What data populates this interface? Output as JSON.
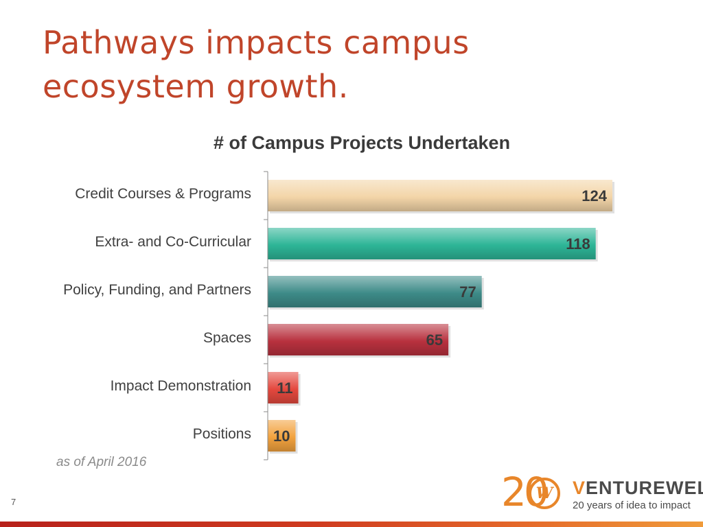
{
  "slide": {
    "title": "Pathways impacts campus ecosystem growth.",
    "page_number": "7",
    "note": "as of April 2016"
  },
  "logo": {
    "mark": "20",
    "name_accent": "V",
    "name_rest": "ENTUREWELL",
    "tagline": "20 years of idea to impact"
  },
  "colors": {
    "title": "#c0452a",
    "accent": "#e8862a"
  },
  "chart_data": {
    "type": "bar",
    "orientation": "horizontal",
    "title": "# of Campus Projects Undertaken",
    "categories": [
      "Credit Courses & Programs",
      "Extra- and Co-Curricular",
      "Policy, Funding, and Partners",
      "Spaces",
      "Impact Demonstration",
      "Positions"
    ],
    "values": [
      124,
      118,
      77,
      65,
      11,
      10
    ],
    "colors": [
      "#f3d5a8",
      "#2db597",
      "#3d8b88",
      "#b8313e",
      "#e4483e",
      "#f2a23e"
    ],
    "data_labels": true,
    "grid": false,
    "legend": "none"
  }
}
